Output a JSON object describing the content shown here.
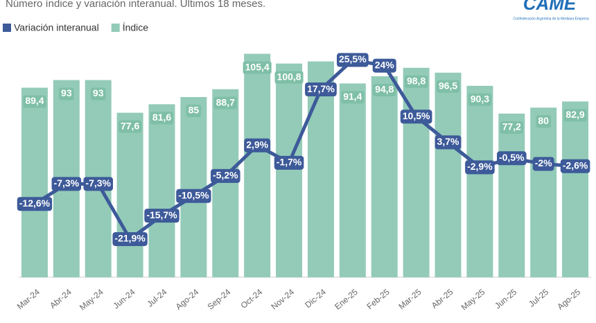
{
  "chart_data": {
    "type": "bar-line",
    "title": "Número índice y variación interanual. Últimos 18 meses.",
    "logo": "CAME",
    "logo_caption": "Confederación Argentina de la Mediana Empresa",
    "categories": [
      "Mar-24",
      "Abr-24",
      "May-24",
      "Jun-24",
      "Jul-24",
      "Ago-24",
      "Sep-24",
      "Oct-24",
      "Nov-24",
      "Dic-24",
      "Ene-25",
      "Feb-25",
      "Mar-25",
      "Abr-25",
      "May-25",
      "Jun-25",
      "Jul-25",
      "Ago-25"
    ],
    "ylim": [
      0,
      110.5
    ],
    "y2lim": [
      -32,
      30
    ],
    "series": [
      {
        "name": "Índice",
        "type": "bar",
        "color": "#93cbb8",
        "values": [
          89.4,
          93,
          93,
          77.6,
          81.6,
          85,
          88.7,
          105.4,
          100.8,
          101.8,
          91.4,
          94.8,
          98.8,
          96.5,
          90.3,
          77.2,
          80,
          82.9
        ],
        "value_labels": [
          "89,4",
          "93",
          "93",
          "77,6",
          "81,6",
          "85",
          "88,7",
          "105,4",
          "100,8",
          null,
          "91,4",
          "94,8",
          "98,8",
          "96,5",
          "90,3",
          "77,2",
          "80",
          "82,9"
        ]
      },
      {
        "name": "Variación interanual",
        "type": "line",
        "axis": "y2",
        "color": "#3d5a99",
        "values": [
          -12.6,
          -7.3,
          -7.3,
          -21.9,
          -15.7,
          -10.5,
          -5.2,
          2.9,
          -1.7,
          17.7,
          25.5,
          24,
          10.5,
          3.7,
          -2.9,
          -0.5,
          -2,
          -2.6
        ],
        "value_labels": [
          "-12,6%",
          "-7,3%",
          "-7,3%",
          "-21,9%",
          "-15,7%",
          "-10,5%",
          "-5,2%",
          "2,9%",
          "-1,7%",
          "17,7%",
          "25,5%",
          "24%",
          "10,5%",
          "3,7%",
          "-2,9%",
          "-0,5%",
          "-2%",
          "-2,6%"
        ]
      }
    ]
  }
}
